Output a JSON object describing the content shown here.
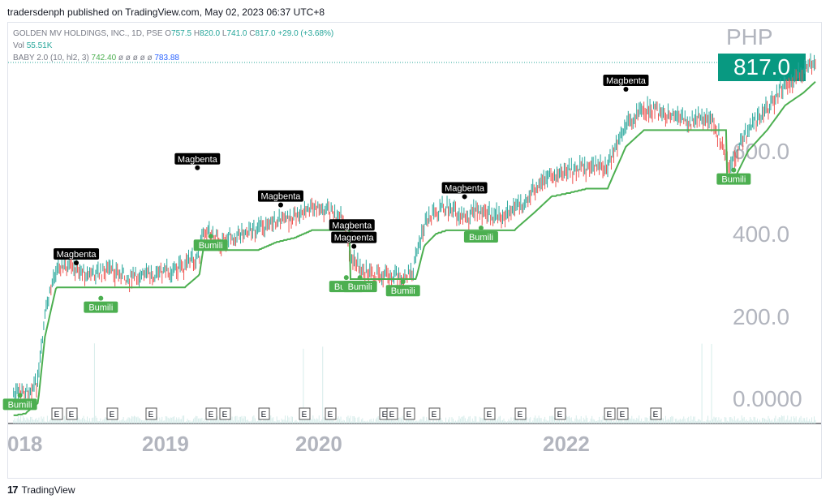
{
  "publish_line": "tradersdenph published on TradingView.com, May 02, 2023 06:37 UTC+8",
  "legend": {
    "symbol": "GOLDEN MV HOLDINGS, INC., 1D, PSE",
    "o_label": "O",
    "o_value": "757.5",
    "h_label": "H",
    "h_value": "820.0",
    "l_label": "L",
    "l_value": "741.0",
    "c_label": "C",
    "c_value": "817.0",
    "change": "+29.0 (+3.68%)",
    "vol_label": "Vol",
    "vol_value": "55.51K",
    "baby_label": "BABY 2.0 (10, hl2, 3)",
    "baby_value": "742.40",
    "baby_empty": "ø ø ø ø ø",
    "baby_value2": "783.88"
  },
  "currency": "PHP",
  "last_price": "817.0",
  "footer_brand": "TradingView",
  "colors": {
    "up": "#26a69a",
    "down": "#ef5350",
    "support": "#4caf50",
    "resistance": "#000000",
    "price_box": "#089981"
  },
  "chart_data": {
    "type": "line",
    "title": "GOLDEN MV HOLDINGS, INC., 1D, PSE",
    "y_axis": {
      "ticks": [
        "0.0000",
        "200.0",
        "400.0",
        "600.0"
      ],
      "range": [
        0,
        900
      ]
    },
    "x_axis": {
      "ticks": [
        "018",
        "2019",
        "2020",
        "2022"
      ]
    },
    "series": [
      {
        "name": "",
        "x": [
          "2017-11-15",
          "2017-12-15",
          "2018-01-15",
          "2018-02-01",
          "2018-03-01",
          "2018-04-15",
          "2018-06-01",
          "2018-07-15",
          "2018-09-01",
          "2018-10-15",
          "2018-12-01",
          "2019-01-15",
          "2019-02-20",
          "2019-03-01",
          "2019-04-15",
          "2019-06-01",
          "2019-07-15",
          "2019-09-01",
          "2019-10-15",
          "2019-12-01",
          "2020-01-15",
          "2020-02-15",
          "2020-03-01",
          "2020-04-01",
          "2020-05-01",
          "2020-06-01",
          "2020-07-15",
          "2020-08-01",
          "2020-09-01",
          "2020-10-01",
          "2020-11-01",
          "2020-12-01",
          "2021-01-15",
          "2021-03-01",
          "2021-04-15",
          "2021-06-01",
          "2021-07-15",
          "2021-09-01",
          "2021-10-15",
          "2021-12-01",
          "2022-01-15",
          "2022-03-01",
          "2022-04-15",
          "2022-05-15",
          "2022-07-01",
          "2022-08-15",
          "2022-10-01",
          "2022-11-15",
          "2023-01-01",
          "2023-02-15",
          "2023-04-01",
          "2023-05-01"
        ],
        "values": [
          10,
          15,
          40,
          200,
          320,
          310,
          300,
          310,
          290,
          300,
          305,
          320,
          350,
          410,
          380,
          400,
          410,
          430,
          440,
          460,
          450,
          420,
          340,
          310,
          300,
          300,
          290,
          300,
          420,
          450,
          460,
          440,
          450,
          440,
          460,
          500,
          540,
          550,
          560,
          560,
          660,
          700,
          690,
          680,
          670,
          680,
          560,
          650,
          700,
          760,
          790,
          817
        ]
      }
    ],
    "signals": [
      {
        "label": "Bumili",
        "date": "2017-12-01",
        "price": 15
      },
      {
        "label": "Magbenta",
        "date": "2018-04-20",
        "price": 320
      },
      {
        "label": "Bumili",
        "date": "2018-06-20",
        "price": 250
      },
      {
        "label": "Magbenta",
        "date": "2019-02-15",
        "price": 550
      },
      {
        "label": "Bumili",
        "date": "2019-03-20",
        "price": 400
      },
      {
        "label": "Magbenta",
        "date": "2019-09-10",
        "price": 460
      },
      {
        "label": "Magbenta",
        "date": "2020-03-10",
        "price": 360
      },
      {
        "label": "Magbenta",
        "date": "2020-03-05",
        "price": 390
      },
      {
        "label": "Bumili",
        "date": "2020-02-20",
        "price": 300
      },
      {
        "label": "Bumili",
        "date": "2020-03-25",
        "price": 300
      },
      {
        "label": "Bumili",
        "date": "2020-07-10",
        "price": 290
      },
      {
        "label": "Magbenta",
        "date": "2020-12-10",
        "price": 480
      },
      {
        "label": "Bumili",
        "date": "2021-01-20",
        "price": 420
      },
      {
        "label": "Magbenta",
        "date": "2022-01-15",
        "price": 740
      },
      {
        "label": "Bumili",
        "date": "2022-10-10",
        "price": 560
      }
    ],
    "earnings_marker": "E",
    "grid": false,
    "legend_position": "top-left"
  }
}
